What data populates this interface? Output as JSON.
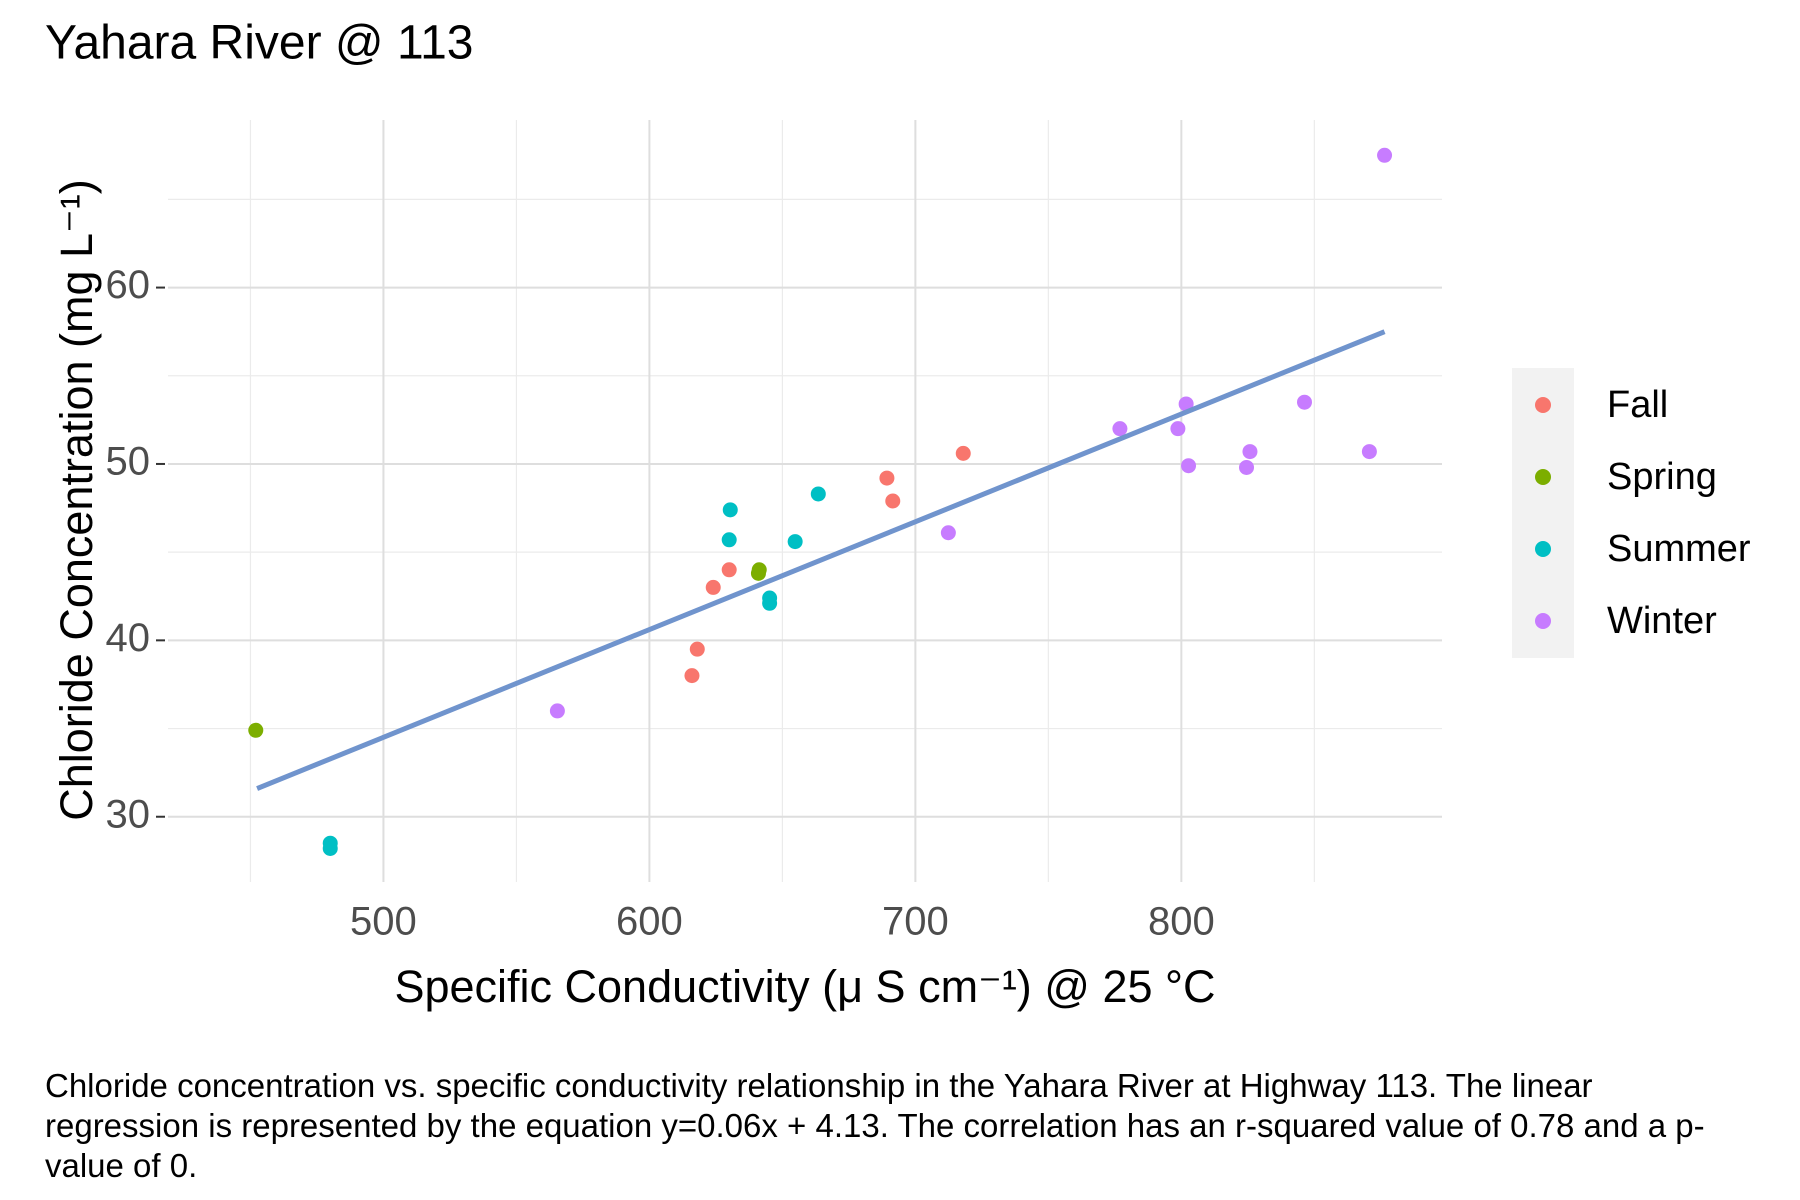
{
  "chart_data": {
    "type": "scatter",
    "title": "Yahara River @ 113",
    "x_label": "Specific Conductivity (μ S cm⁻¹) @ 25 °C",
    "y_label": "Chloride Concentration (mg L⁻¹)",
    "caption": "Chloride concentration vs. specific conductivity relationship in the Yahara River at Highway 113. The linear regression is represented by the equation y=0.06x + 4.13. The correlation has an r-squared value of 0.78 and a p-value of 0.",
    "xlim": [
      419,
      898
    ],
    "ylim": [
      26.3,
      69.5
    ],
    "xticks": [
      500,
      600,
      700,
      800
    ],
    "yticks": [
      30,
      40,
      50,
      60
    ],
    "xminor": [
      450,
      550,
      650,
      750,
      850
    ],
    "yminor": [
      35,
      45,
      55,
      65
    ],
    "grid": true,
    "legend": "right",
    "series": [
      {
        "name": "Fall",
        "color": "#F8766D",
        "x": [
          616,
          618,
          624,
          630,
          689.3,
          691.5,
          718
        ],
        "values": [
          38.0,
          39.5,
          43.0,
          44.0,
          49.2,
          47.9,
          50.6
        ]
      },
      {
        "name": "Spring",
        "color": "#7CAE00",
        "x": [
          452,
          641.3,
          641
        ],
        "values": [
          34.9,
          44.0,
          43.8
        ]
      },
      {
        "name": "Summer",
        "color": "#00BFC4",
        "x": [
          480,
          480,
          630.4,
          630,
          645.2,
          645.2,
          654.8,
          663.5
        ],
        "values": [
          28.5,
          28.2,
          47.4,
          45.7,
          42.4,
          42.1,
          45.6,
          48.3
        ]
      },
      {
        "name": "Winter",
        "color": "#C77CFF",
        "x": [
          565.4,
          712.4,
          776.9,
          798.7,
          801.8,
          802.7,
          824.5,
          825.8,
          846.3,
          870.7,
          876.4
        ],
        "values": [
          36.0,
          46.1,
          52.0,
          52.0,
          53.4,
          49.9,
          49.8,
          50.7,
          53.5,
          50.7,
          67.5
        ]
      }
    ],
    "regression": {
      "color": "#7094CD",
      "x": [
        452.5,
        876.4
      ],
      "values": [
        31.6,
        57.5
      ]
    }
  }
}
